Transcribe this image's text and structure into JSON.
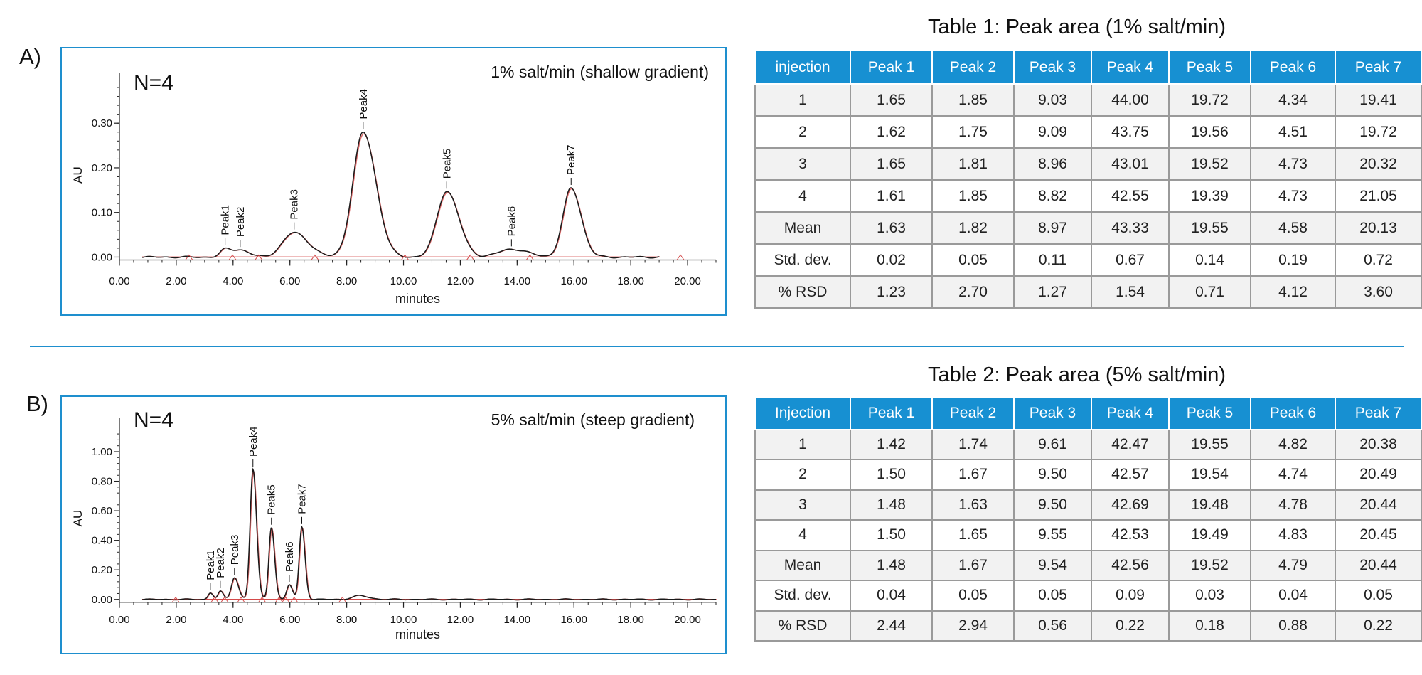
{
  "panel_a": {
    "label": "A)",
    "n_label": "N=4",
    "condition_label": "1% salt/min (shallow gradient)",
    "table": {
      "title": "Table 1: Peak area (1% salt/min)",
      "headers": [
        "injection",
        "Peak 1",
        "Peak 2",
        "Peak 3",
        "Peak 4",
        "Peak 5",
        "Peak 6",
        "Peak 7"
      ],
      "rows": [
        [
          "1",
          "1.65",
          "1.85",
          "9.03",
          "44.00",
          "19.72",
          "4.34",
          "19.41"
        ],
        [
          "2",
          "1.62",
          "1.75",
          "9.09",
          "43.75",
          "19.56",
          "4.51",
          "19.72"
        ],
        [
          "3",
          "1.65",
          "1.81",
          "8.96",
          "43.01",
          "19.52",
          "4.73",
          "20.32"
        ],
        [
          "4",
          "1.61",
          "1.85",
          "8.82",
          "42.55",
          "19.39",
          "4.73",
          "21.05"
        ],
        [
          "Mean",
          "1.63",
          "1.82",
          "8.97",
          "43.33",
          "19.55",
          "4.58",
          "20.13"
        ],
        [
          "Std. dev.",
          "0.02",
          "0.05",
          "0.11",
          "0.67",
          "0.14",
          "0.19",
          "0.72"
        ],
        [
          "% RSD",
          "1.23",
          "2.70",
          "1.27",
          "1.54",
          "0.71",
          "4.12",
          "3.60"
        ]
      ]
    }
  },
  "panel_b": {
    "label": "B)",
    "n_label": "N=4",
    "condition_label": "5% salt/min (steep gradient)",
    "table": {
      "title": "Table 2: Peak area (5% salt/min)",
      "headers": [
        "Injection",
        "Peak 1",
        "Peak 2",
        "Peak 3",
        "Peak 4",
        "Peak 5",
        "Peak 6",
        "Peak 7"
      ],
      "rows": [
        [
          "1",
          "1.42",
          "1.74",
          "9.61",
          "42.47",
          "19.55",
          "4.82",
          "20.38"
        ],
        [
          "2",
          "1.50",
          "1.67",
          "9.50",
          "42.57",
          "19.54",
          "4.74",
          "20.49"
        ],
        [
          "3",
          "1.48",
          "1.63",
          "9.50",
          "42.69",
          "19.48",
          "4.78",
          "20.44"
        ],
        [
          "4",
          "1.50",
          "1.65",
          "9.55",
          "42.53",
          "19.49",
          "4.83",
          "20.45"
        ],
        [
          "Mean",
          "1.48",
          "1.67",
          "9.54",
          "42.56",
          "19.52",
          "4.79",
          "20.44"
        ],
        [
          "Std. dev.",
          "0.04",
          "0.05",
          "0.05",
          "0.09",
          "0.03",
          "0.04",
          "0.05"
        ],
        [
          "% RSD",
          "2.44",
          "2.94",
          "0.56",
          "0.22",
          "0.18",
          "0.88",
          "0.22"
        ]
      ]
    }
  },
  "colors": {
    "accent": "#1e8fce",
    "header": "#1790d2",
    "trace": "#1a1a1a",
    "baseline": "#d44a4a"
  },
  "chart_data": [
    {
      "type": "line",
      "title": "1% salt/min (shallow gradient)",
      "xlabel": "minutes",
      "ylabel": "AU",
      "xlim": [
        0,
        21
      ],
      "ylim": [
        -0.012,
        0.38
      ],
      "xticks": [
        0,
        2,
        4,
        6,
        8,
        10,
        12,
        14,
        16,
        18,
        20
      ],
      "xtick_labels": [
        "0.00",
        "2.00",
        "4.00",
        "6.00",
        "8.00",
        "10.00",
        "12.00",
        "14.00",
        "16.00",
        "18.00",
        "20.00"
      ],
      "yticks": [
        0,
        0.1,
        0.2,
        0.3
      ],
      "ytick_labels": [
        "0.00",
        "0.10",
        "0.20",
        "0.30"
      ],
      "x_end": 19.0,
      "baseline_noise": 0.002,
      "peaks": [
        {
          "name": "Peak1",
          "rt": 3.72,
          "height": 0.017,
          "width": 0.17
        },
        {
          "name": "Peak2",
          "rt": 4.25,
          "height": 0.016,
          "width": 0.25
        },
        {
          "name": "Peak3",
          "rt": 6.15,
          "height": 0.055,
          "width": 0.4
        },
        {
          "name": "Peak4",
          "rt": 8.58,
          "height": 0.28,
          "width": 0.36
        },
        {
          "name": "Peak5",
          "rt": 11.52,
          "height": 0.148,
          "width": 0.34
        },
        {
          "name": "Peak6",
          "rt": 13.8,
          "height": 0.018,
          "width": 0.45
        },
        {
          "name": "Peak7",
          "rt": 15.9,
          "height": 0.155,
          "width": 0.28
        }
      ],
      "integration_marks": [
        2.45,
        3.98,
        4.9,
        6.88,
        10.05,
        12.35,
        14.45,
        19.75
      ]
    },
    {
      "type": "line",
      "title": "5% salt/min (steep gradient)",
      "xlabel": "minutes",
      "ylabel": "AU",
      "xlim": [
        0,
        21
      ],
      "ylim": [
        -0.03,
        1.13
      ],
      "xticks": [
        0,
        2,
        4,
        6,
        8,
        10,
        12,
        14,
        16,
        18,
        20
      ],
      "xtick_labels": [
        "0.00",
        "2.00",
        "4.00",
        "6.00",
        "8.00",
        "10.00",
        "12.00",
        "14.00",
        "16.00",
        "18.00",
        "20.00"
      ],
      "yticks": [
        0,
        0.2,
        0.4,
        0.6,
        0.8,
        1.0
      ],
      "ytick_labels": [
        "0.00",
        "0.20",
        "0.40",
        "0.60",
        "0.80",
        "1.00"
      ],
      "x_end": 21.0,
      "baseline_noise": 0.004,
      "peaks": [
        {
          "name": "Peak1",
          "rt": 3.2,
          "height": 0.045,
          "width": 0.08
        },
        {
          "name": "Peak2",
          "rt": 3.55,
          "height": 0.055,
          "width": 0.08
        },
        {
          "name": "Peak3",
          "rt": 4.05,
          "height": 0.15,
          "width": 0.11
        },
        {
          "name": "Peak4",
          "rt": 4.7,
          "height": 0.88,
          "width": 0.1
        },
        {
          "name": "Peak5",
          "rt": 5.35,
          "height": 0.49,
          "width": 0.09
        },
        {
          "name": "Peak6",
          "rt": 5.98,
          "height": 0.1,
          "width": 0.09
        },
        {
          "name": "Peak7",
          "rt": 6.42,
          "height": 0.49,
          "width": 0.09
        },
        {
          "name": "",
          "rt": 8.45,
          "height": 0.025,
          "width": 0.25
        }
      ],
      "integration_marks": [
        1.98,
        3.35,
        3.7,
        4.28,
        5.02,
        5.62,
        5.85,
        6.15,
        7.85
      ]
    }
  ]
}
